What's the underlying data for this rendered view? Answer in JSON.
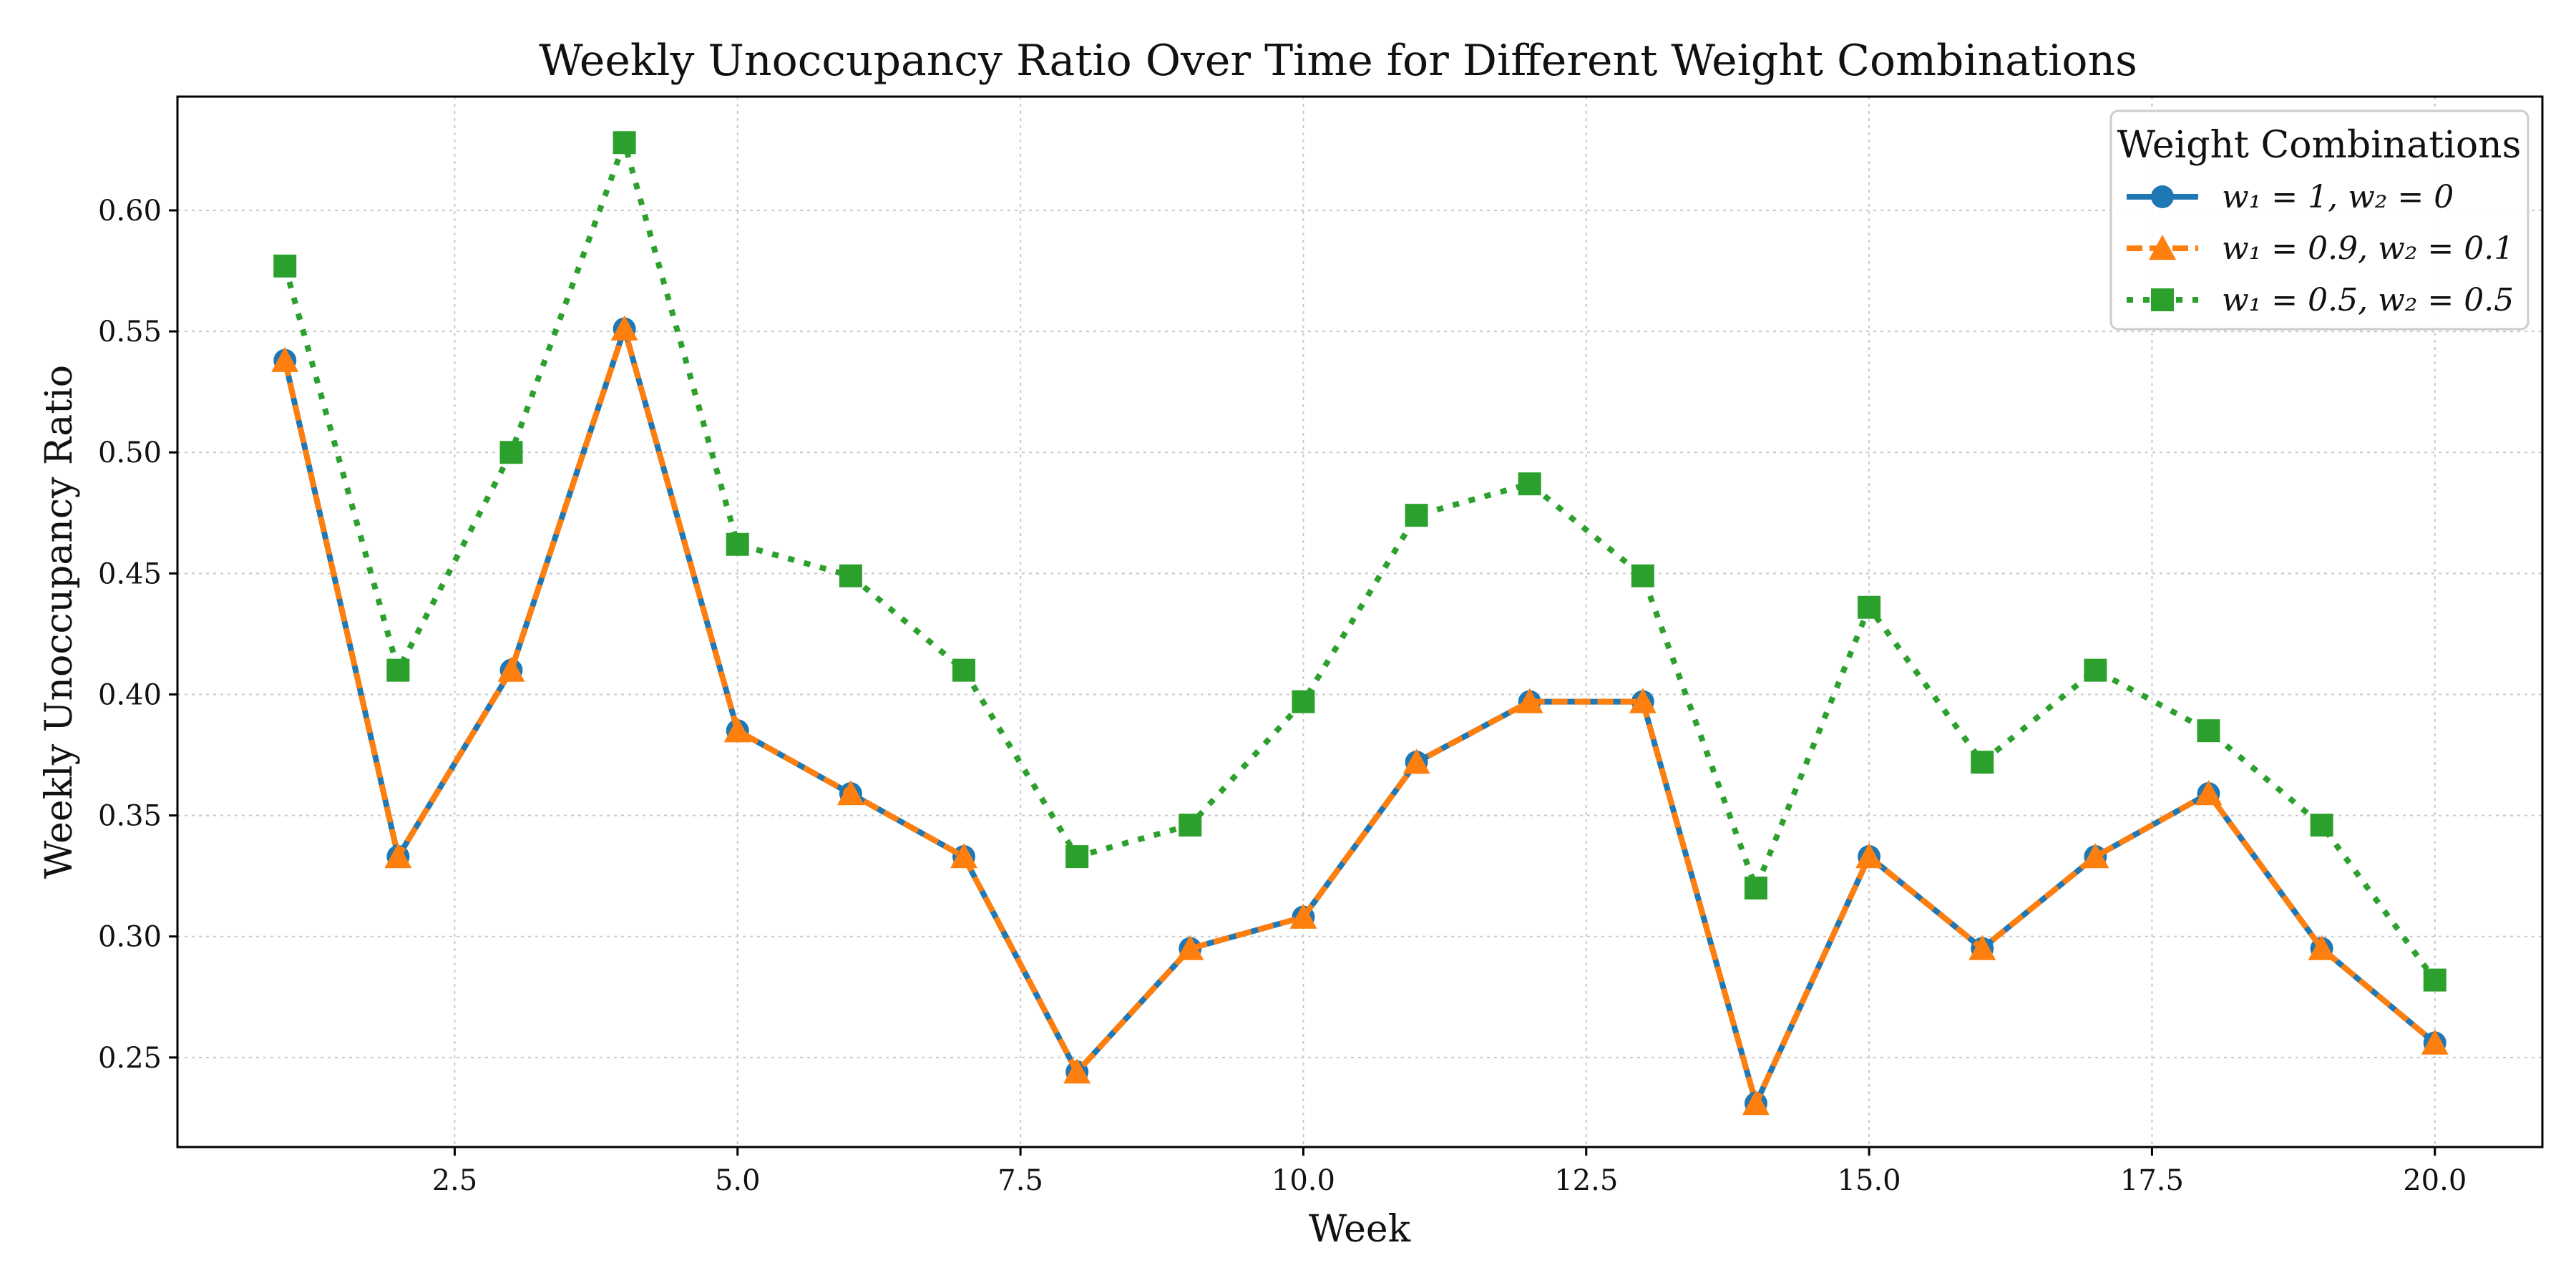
{
  "chart_data": {
    "type": "line",
    "title": "Weekly Unoccupancy Ratio Over Time for Different Weight Combinations",
    "xlabel": "Week",
    "ylabel": "Weekly Unoccupancy Ratio",
    "xlim": [
      0.05,
      20.95
    ],
    "ylim": [
      0.213,
      0.647
    ],
    "xticks": [
      2.5,
      5.0,
      7.5,
      10.0,
      12.5,
      15.0,
      17.5,
      20.0
    ],
    "xtick_labels": [
      "2.5",
      "5.0",
      "7.5",
      "10.0",
      "12.5",
      "15.0",
      "17.5",
      "20.0"
    ],
    "yticks": [
      0.25,
      0.3,
      0.35,
      0.4,
      0.45,
      0.5,
      0.55,
      0.6
    ],
    "ytick_labels": [
      "0.25",
      "0.30",
      "0.35",
      "0.40",
      "0.45",
      "0.50",
      "0.55",
      "0.60"
    ],
    "grid": true,
    "legend_title": "Weight Combinations",
    "legend_position": "top-right",
    "x": [
      1,
      2,
      3,
      4,
      5,
      6,
      7,
      8,
      9,
      10,
      11,
      12,
      13,
      14,
      15,
      16,
      17,
      18,
      19,
      20
    ],
    "series": [
      {
        "name": "w₁ = 1, w₂ = 0",
        "color": "#1f77b4",
        "marker": "circle",
        "linestyle": "solid",
        "values": [
          0.538,
          0.333,
          0.41,
          0.551,
          0.385,
          0.359,
          0.333,
          0.244,
          0.295,
          0.308,
          0.372,
          0.397,
          0.397,
          0.231,
          0.333,
          0.295,
          0.333,
          0.359,
          0.295,
          0.256
        ]
      },
      {
        "name": "w₁ = 0.9, w₂ = 0.1",
        "color": "#ff7f0e",
        "marker": "triangle",
        "linestyle": "dashed",
        "values": [
          0.538,
          0.333,
          0.41,
          0.551,
          0.385,
          0.359,
          0.333,
          0.244,
          0.295,
          0.308,
          0.372,
          0.397,
          0.397,
          0.231,
          0.333,
          0.295,
          0.333,
          0.359,
          0.295,
          0.256
        ]
      },
      {
        "name": "w₁ = 0.5, w₂ = 0.5",
        "color": "#2ca02c",
        "marker": "square",
        "linestyle": "dotted",
        "values": [
          0.577,
          0.41,
          0.5,
          0.628,
          0.462,
          0.449,
          0.41,
          0.333,
          0.346,
          0.397,
          0.474,
          0.487,
          0.449,
          0.32,
          0.436,
          0.372,
          0.41,
          0.385,
          0.346,
          0.282
        ]
      }
    ]
  }
}
